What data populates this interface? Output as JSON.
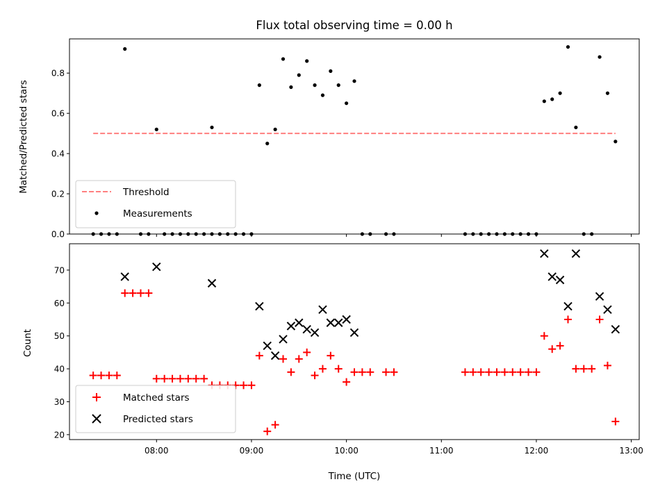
{
  "chart_data": [
    {
      "type": "line+scatter",
      "title": "Flux total observing time = 0.00 h",
      "xlabel": "",
      "ylabel": "Matched/Predicted stars",
      "xlim": [
        "07:05",
        "13:05"
      ],
      "ylim": [
        0,
        0.97
      ],
      "yticks": [
        0.0,
        0.2,
        0.4,
        0.6,
        0.8
      ],
      "ytick_labels": [
        "0.0",
        "0.2",
        "0.4",
        "0.6",
        "0.8"
      ],
      "legend_position": "lower-left",
      "series": [
        {
          "name": "Threshold",
          "style": "dashed-line",
          "color": "#ff7f7f",
          "points": [
            {
              "t": "07:20",
              "y": 0.5
            },
            {
              "t": "12:50",
              "y": 0.5
            }
          ]
        },
        {
          "name": "Measurements",
          "style": "dot",
          "color": "#000000",
          "points": [
            {
              "t": "07:20",
              "y": 0.0
            },
            {
              "t": "07:25",
              "y": 0.0
            },
            {
              "t": "07:30",
              "y": 0.0
            },
            {
              "t": "07:35",
              "y": 0.0
            },
            {
              "t": "07:40",
              "y": 0.92
            },
            {
              "t": "07:50",
              "y": 0.0
            },
            {
              "t": "07:55",
              "y": 0.0
            },
            {
              "t": "08:00",
              "y": 0.52
            },
            {
              "t": "08:05",
              "y": 0.0
            },
            {
              "t": "08:10",
              "y": 0.0
            },
            {
              "t": "08:15",
              "y": 0.0
            },
            {
              "t": "08:20",
              "y": 0.0
            },
            {
              "t": "08:25",
              "y": 0.0
            },
            {
              "t": "08:30",
              "y": 0.0
            },
            {
              "t": "08:35",
              "y": 0.0
            },
            {
              "t": "08:40",
              "y": 0.0
            },
            {
              "t": "08:45",
              "y": 0.0
            },
            {
              "t": "08:50",
              "y": 0.0
            },
            {
              "t": "08:55",
              "y": 0.0
            },
            {
              "t": "09:00",
              "y": 0.0
            },
            {
              "t": "08:35",
              "y": 0.53
            },
            {
              "t": "09:05",
              "y": 0.74
            },
            {
              "t": "09:10",
              "y": 0.45
            },
            {
              "t": "09:15",
              "y": 0.52
            },
            {
              "t": "09:20",
              "y": 0.87
            },
            {
              "t": "09:25",
              "y": 0.73
            },
            {
              "t": "09:30",
              "y": 0.79
            },
            {
              "t": "09:35",
              "y": 0.86
            },
            {
              "t": "09:40",
              "y": 0.74
            },
            {
              "t": "09:45",
              "y": 0.69
            },
            {
              "t": "09:50",
              "y": 0.81
            },
            {
              "t": "09:55",
              "y": 0.74
            },
            {
              "t": "10:00",
              "y": 0.65
            },
            {
              "t": "10:05",
              "y": 0.76
            },
            {
              "t": "10:10",
              "y": 0.0
            },
            {
              "t": "10:15",
              "y": 0.0
            },
            {
              "t": "10:25",
              "y": 0.0
            },
            {
              "t": "10:30",
              "y": 0.0
            },
            {
              "t": "11:15",
              "y": 0.0
            },
            {
              "t": "11:20",
              "y": 0.0
            },
            {
              "t": "11:25",
              "y": 0.0
            },
            {
              "t": "11:30",
              "y": 0.0
            },
            {
              "t": "11:35",
              "y": 0.0
            },
            {
              "t": "11:40",
              "y": 0.0
            },
            {
              "t": "11:45",
              "y": 0.0
            },
            {
              "t": "11:50",
              "y": 0.0
            },
            {
              "t": "11:55",
              "y": 0.0
            },
            {
              "t": "12:00",
              "y": 0.0
            },
            {
              "t": "12:05",
              "y": 0.66
            },
            {
              "t": "12:10",
              "y": 0.67
            },
            {
              "t": "12:15",
              "y": 0.7
            },
            {
              "t": "12:20",
              "y": 0.93
            },
            {
              "t": "12:25",
              "y": 0.53
            },
            {
              "t": "12:30",
              "y": 0.0
            },
            {
              "t": "12:35",
              "y": 0.0
            },
            {
              "t": "12:40",
              "y": 0.88
            },
            {
              "t": "12:45",
              "y": 0.7
            },
            {
              "t": "12:50",
              "y": 0.46
            }
          ]
        }
      ]
    },
    {
      "type": "scatter",
      "title": "",
      "xlabel": "Time (UTC)",
      "ylabel": "Count",
      "xlim": [
        "07:05",
        "13:05"
      ],
      "ylim": [
        18.5,
        78
      ],
      "yticks": [
        20,
        30,
        40,
        50,
        60,
        70
      ],
      "ytick_labels": [
        "20",
        "30",
        "40",
        "50",
        "60",
        "70"
      ],
      "xticks": [
        "08:00",
        "09:00",
        "10:00",
        "11:00",
        "12:00",
        "13:00"
      ],
      "xtick_labels": [
        "08:00",
        "09:00",
        "10:00",
        "11:00",
        "12:00",
        "13:00"
      ],
      "legend_position": "lower-left",
      "series": [
        {
          "name": "Matched stars",
          "marker": "plus",
          "color": "#ff0000",
          "points": [
            {
              "t": "07:20",
              "y": 38
            },
            {
              "t": "07:25",
              "y": 38
            },
            {
              "t": "07:30",
              "y": 38
            },
            {
              "t": "07:35",
              "y": 38
            },
            {
              "t": "07:40",
              "y": 63
            },
            {
              "t": "07:45",
              "y": 63
            },
            {
              "t": "07:50",
              "y": 63
            },
            {
              "t": "07:55",
              "y": 63
            },
            {
              "t": "08:00",
              "y": 37
            },
            {
              "t": "08:05",
              "y": 37
            },
            {
              "t": "08:10",
              "y": 37
            },
            {
              "t": "08:15",
              "y": 37
            },
            {
              "t": "08:20",
              "y": 37
            },
            {
              "t": "08:25",
              "y": 37
            },
            {
              "t": "08:30",
              "y": 37
            },
            {
              "t": "08:35",
              "y": 35
            },
            {
              "t": "08:40",
              "y": 35
            },
            {
              "t": "08:45",
              "y": 35
            },
            {
              "t": "08:50",
              "y": 35
            },
            {
              "t": "08:55",
              "y": 35
            },
            {
              "t": "09:00",
              "y": 35
            },
            {
              "t": "09:05",
              "y": 44
            },
            {
              "t": "09:10",
              "y": 21
            },
            {
              "t": "09:15",
              "y": 23
            },
            {
              "t": "09:20",
              "y": 43
            },
            {
              "t": "09:25",
              "y": 39
            },
            {
              "t": "09:30",
              "y": 43
            },
            {
              "t": "09:35",
              "y": 45
            },
            {
              "t": "09:40",
              "y": 38
            },
            {
              "t": "09:45",
              "y": 40
            },
            {
              "t": "09:50",
              "y": 44
            },
            {
              "t": "09:55",
              "y": 40
            },
            {
              "t": "10:00",
              "y": 36
            },
            {
              "t": "10:05",
              "y": 39
            },
            {
              "t": "10:10",
              "y": 39
            },
            {
              "t": "10:15",
              "y": 39
            },
            {
              "t": "10:25",
              "y": 39
            },
            {
              "t": "10:30",
              "y": 39
            },
            {
              "t": "11:15",
              "y": 39
            },
            {
              "t": "11:20",
              "y": 39
            },
            {
              "t": "11:25",
              "y": 39
            },
            {
              "t": "11:30",
              "y": 39
            },
            {
              "t": "11:35",
              "y": 39
            },
            {
              "t": "11:40",
              "y": 39
            },
            {
              "t": "11:45",
              "y": 39
            },
            {
              "t": "11:50",
              "y": 39
            },
            {
              "t": "11:55",
              "y": 39
            },
            {
              "t": "12:00",
              "y": 39
            },
            {
              "t": "12:05",
              "y": 50
            },
            {
              "t": "12:10",
              "y": 46
            },
            {
              "t": "12:15",
              "y": 47
            },
            {
              "t": "12:20",
              "y": 55
            },
            {
              "t": "12:25",
              "y": 40
            },
            {
              "t": "12:30",
              "y": 40
            },
            {
              "t": "12:35",
              "y": 40
            },
            {
              "t": "12:40",
              "y": 55
            },
            {
              "t": "12:45",
              "y": 41
            },
            {
              "t": "12:50",
              "y": 24
            }
          ]
        },
        {
          "name": "Predicted stars",
          "marker": "x",
          "color": "#000000",
          "points": [
            {
              "t": "07:40",
              "y": 68
            },
            {
              "t": "08:00",
              "y": 71
            },
            {
              "t": "08:35",
              "y": 66
            },
            {
              "t": "09:05",
              "y": 59
            },
            {
              "t": "09:10",
              "y": 47
            },
            {
              "t": "09:15",
              "y": 44
            },
            {
              "t": "09:20",
              "y": 49
            },
            {
              "t": "09:25",
              "y": 53
            },
            {
              "t": "09:30",
              "y": 54
            },
            {
              "t": "09:35",
              "y": 52
            },
            {
              "t": "09:40",
              "y": 51
            },
            {
              "t": "09:45",
              "y": 58
            },
            {
              "t": "09:50",
              "y": 54
            },
            {
              "t": "09:55",
              "y": 54
            },
            {
              "t": "10:00",
              "y": 55
            },
            {
              "t": "10:05",
              "y": 51
            },
            {
              "t": "12:05",
              "y": 75
            },
            {
              "t": "12:10",
              "y": 68
            },
            {
              "t": "12:15",
              "y": 67
            },
            {
              "t": "12:20",
              "y": 59
            },
            {
              "t": "12:25",
              "y": 75
            },
            {
              "t": "12:40",
              "y": 62
            },
            {
              "t": "12:45",
              "y": 58
            },
            {
              "t": "12:50",
              "y": 52
            }
          ]
        }
      ]
    }
  ]
}
